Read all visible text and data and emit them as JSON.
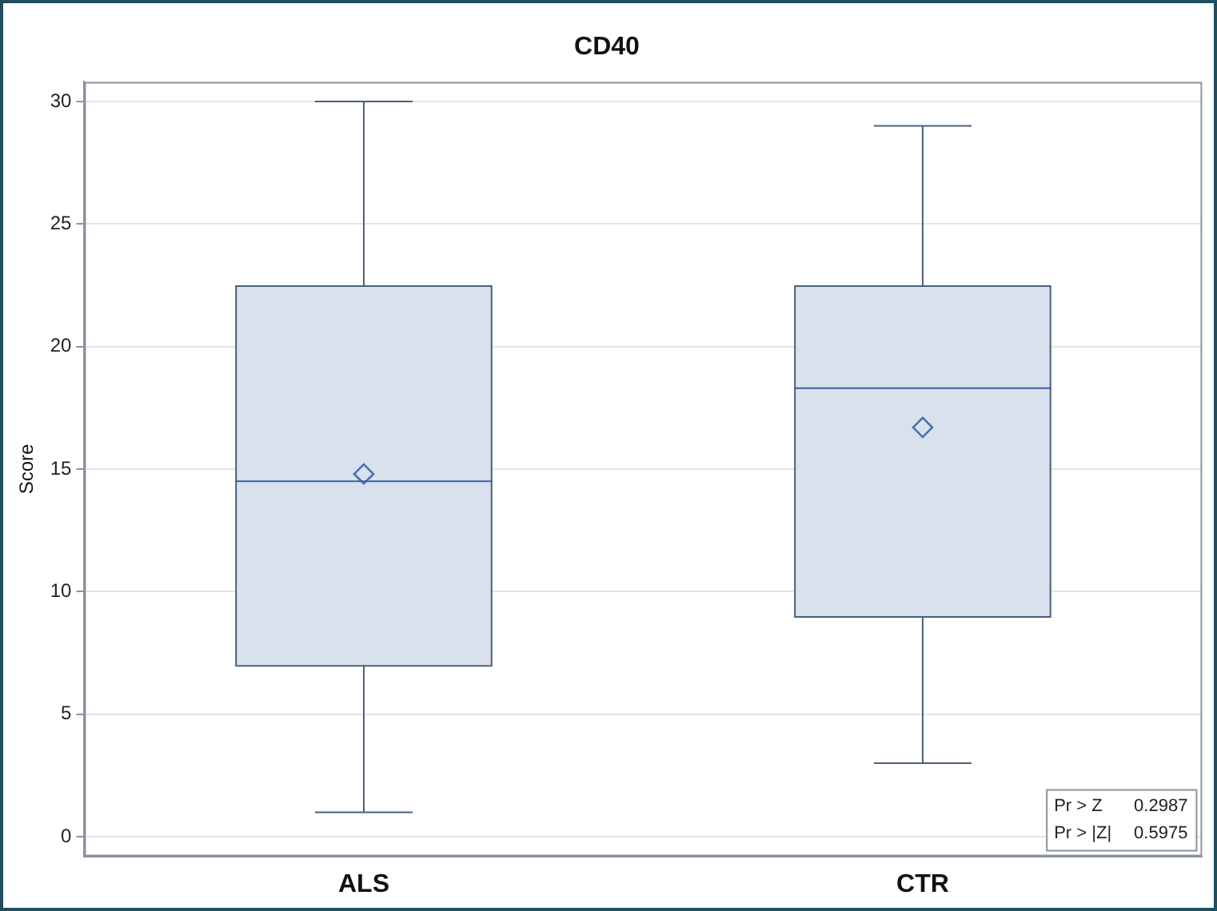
{
  "chart_data": {
    "type": "box",
    "title": "CD40",
    "ylabel": "Score",
    "categories": [
      "ALS",
      "CTR"
    ],
    "color": "#d9e1ec",
    "boxes": [
      {
        "low": 1,
        "q1": 7,
        "median": 14.5,
        "q3": 22.5,
        "high": 30,
        "mean": 14.8
      },
      {
        "low": 3,
        "q1": 9,
        "median": 18.3,
        "q3": 22.5,
        "high": 29,
        "mean": 16.7
      }
    ],
    "ylim": [
      -0.8,
      30.8
    ],
    "yticks": [
      0,
      5,
      10,
      15,
      20,
      25,
      30
    ],
    "grid": "y",
    "legend": false,
    "marker": "diamond",
    "annotations": [
      "Pr > Z 0.2987",
      "Pr > |Z| 0.5975"
    ]
  }
}
